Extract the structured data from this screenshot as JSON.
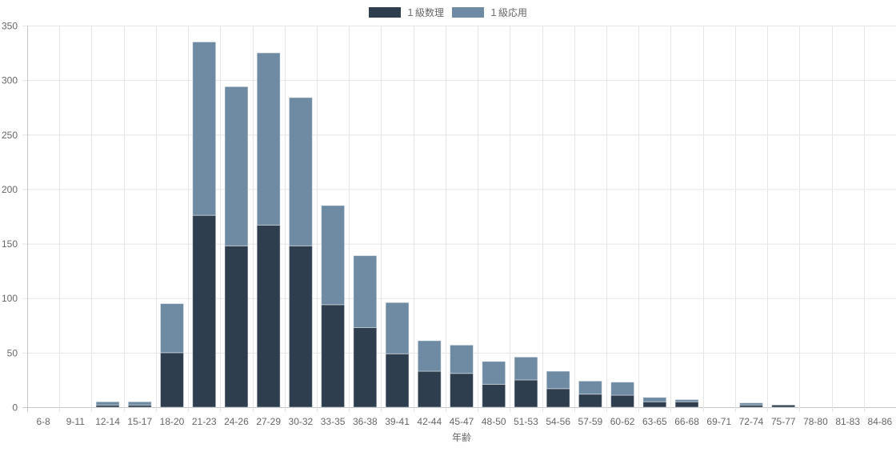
{
  "chart_data": {
    "type": "bar",
    "stacked": true,
    "title": "",
    "xlabel": "年齢",
    "ylabel": "",
    "ylim": [
      0,
      350
    ],
    "yticks": [
      0,
      50,
      100,
      150,
      200,
      250,
      300,
      350
    ],
    "grid": true,
    "legend_position": "top-center",
    "categories": [
      "6-8",
      "9-11",
      "12-14",
      "15-17",
      "18-20",
      "21-23",
      "24-26",
      "27-29",
      "30-32",
      "33-35",
      "36-38",
      "39-41",
      "42-44",
      "45-47",
      "48-50",
      "51-53",
      "54-56",
      "57-59",
      "60-62",
      "63-65",
      "66-68",
      "69-71",
      "72-74",
      "75-77",
      "78-80",
      "81-83",
      "84-86"
    ],
    "series": [
      {
        "name": "１級数理",
        "color": "#2e3e4f",
        "values": [
          0,
          0,
          2,
          2,
          50,
          176,
          148,
          167,
          148,
          94,
          73,
          49,
          33,
          31,
          21,
          25,
          17,
          12,
          11,
          5,
          5,
          0,
          2,
          2,
          0,
          0,
          0
        ]
      },
      {
        "name": "１級応用",
        "color": "#6f8ba3",
        "values": [
          0,
          0,
          3,
          3,
          45,
          159,
          146,
          158,
          136,
          91,
          66,
          47,
          28,
          26,
          21,
          21,
          16,
          12,
          12,
          4,
          2,
          0,
          2,
          0,
          0,
          0,
          0
        ]
      }
    ]
  }
}
